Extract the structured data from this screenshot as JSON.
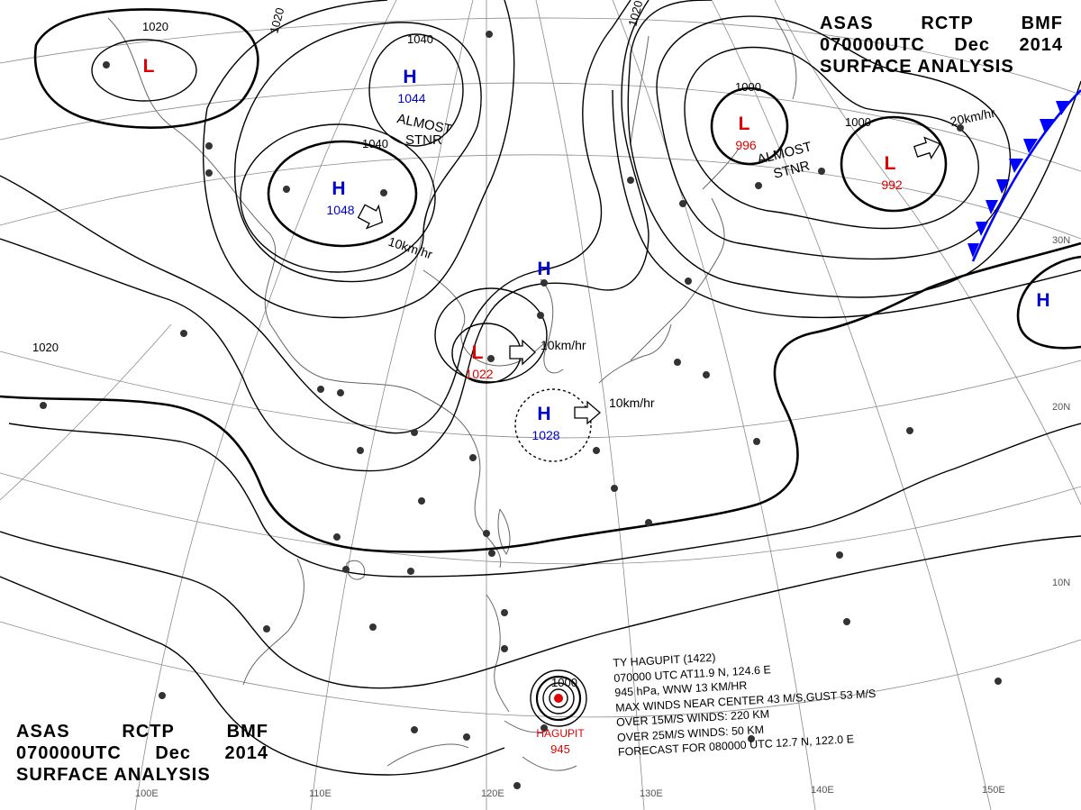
{
  "header": {
    "line1": [
      "ASAS",
      "RCTP",
      "BMF"
    ],
    "line2": [
      "070000UTC",
      "Dec",
      "2014"
    ],
    "line3": "SURFACE  ANALYSIS"
  },
  "pressure_systems": [
    {
      "type": "L",
      "pressure": "",
      "color": "#e00000"
    },
    {
      "type": "H",
      "pressure": "1044",
      "color": "#0000cc"
    },
    {
      "type": "H",
      "pressure": "1048",
      "color": "#0000cc"
    },
    {
      "type": "L",
      "pressure": "1022",
      "color": "#e00000"
    },
    {
      "type": "H",
      "pressure": "",
      "color": "#0000cc"
    },
    {
      "type": "H",
      "pressure": "1028",
      "color": "#0000cc"
    },
    {
      "type": "L",
      "pressure": "996",
      "color": "#e00000"
    },
    {
      "type": "L",
      "pressure": "992",
      "color": "#e00000"
    },
    {
      "type": "H",
      "pressure": "",
      "color": "#0000cc"
    }
  ],
  "isobar_labels": [
    "1020",
    "1020",
    "1040",
    "1040",
    "1020",
    "1000",
    "1000",
    "1020",
    "1000"
  ],
  "motion_labels": [
    "10km/hr",
    "10km/hr",
    "10km/hr",
    "20km/hr"
  ],
  "notes": [
    "ALMOST",
    "STNR",
    "ALMOST",
    "STNR"
  ],
  "longitude_labels": [
    "100E",
    "110E",
    "120E",
    "130E",
    "140E",
    "150E"
  ],
  "latitude_labels": [
    "30N",
    "20N",
    "10N"
  ],
  "typhoon": {
    "name_label": "HAGUPIT",
    "pressure": "945",
    "center_isobar": "1000",
    "info": [
      "TY  HAGUPIT  (1422)",
      "070000 UTC  AT11.9 N, 124.6 E",
      "945 hPa, WNW  13 KM/HR",
      "MAX WINDS NEAR CENTER 43 M/S,GUST 53 M/S",
      "OVER 15M/S WINDS: 220 KM",
      "OVER 25M/S WINDS: 50 KM",
      "FORECAST FOR 080000 UTC 12.7 N, 122.0 E"
    ]
  },
  "colors": {
    "low": "#e00000",
    "high": "#0000cc",
    "cold_front": "#0000ff",
    "isobar": "#000000",
    "coast": "#555555",
    "grid": "#777777"
  }
}
